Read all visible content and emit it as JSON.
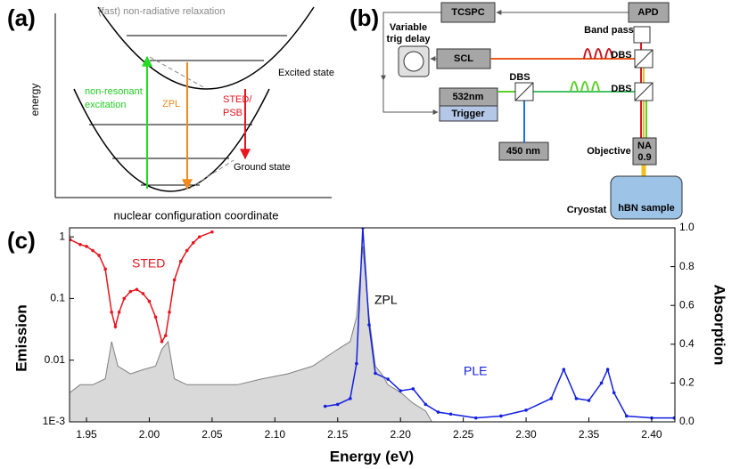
{
  "panel_a": {
    "label": "(a)",
    "relaxation": "(fast) non-radiative relaxation",
    "excited": "Excited state",
    "excitation": [
      "non-resonant",
      "excitation"
    ],
    "zpl": "ZPL",
    "sted": [
      "STED/",
      "PSB"
    ],
    "ground": "Ground state",
    "y_axis": "energy",
    "x_axis": "nuclear configuration coordinate"
  },
  "panel_b": {
    "label": "(b)",
    "tcspc": "TCSPC",
    "apd": "APD",
    "delay": [
      "Variable",
      "trig delay"
    ],
    "band_pass": "Band pass",
    "scl": "SCL",
    "dbs": [
      "DBS",
      "DBS",
      "DBS"
    ],
    "laser_532": "532nm",
    "trigger": "Trigger",
    "laser_450": "450 nm",
    "objective": "Objective",
    "na": [
      "NA",
      "0.9"
    ],
    "cryostat": "Cryostat",
    "sample": "hBN sample"
  },
  "chart_data": {
    "type": "line",
    "label": "(c)",
    "xlabel": "Energy (eV)",
    "ylabel": "Emission",
    "y2label": "Absorption",
    "xlim": [
      1.9365,
      2.4185
    ],
    "xticks": [
      1.95,
      {
        "value": 2,
        "label": "2.00"
      },
      2.05,
      {
        "value": 2.1,
        "label": "2.10"
      },
      2.15,
      {
        "value": 2.2,
        "label": "2.20"
      },
      2.25,
      {
        "value": 2.3,
        "label": "2.30"
      },
      2.35,
      {
        "value": 2.4,
        "label": "2.40"
      }
    ],
    "ylim": [
      0.001,
      1.4
    ],
    "ylog": true,
    "yticks": [
      {
        "value": 0.001,
        "label": "1E-3"
      },
      0.01,
      0.1,
      1
    ],
    "y2lim": [
      0,
      1
    ],
    "y2ticks": [
      {
        "value": 0,
        "label": "0.0"
      },
      0.2,
      0.4,
      0.6,
      0.8,
      {
        "value": 1,
        "label": "1.0"
      }
    ],
    "annotation": "ZPL",
    "series": [
      {
        "name": "STED",
        "color": "#e8141e",
        "x": [
          1.937,
          1.945,
          1.95,
          1.955,
          1.96,
          1.965,
          1.97,
          1.973,
          1.976,
          1.98,
          1.985,
          1.99,
          1.995,
          2.0,
          2.005,
          2.01,
          2.013,
          2.016,
          2.02,
          2.025,
          2.03,
          2.035,
          2.04,
          2.05
        ],
        "values": [
          0.9,
          0.75,
          0.7,
          0.6,
          0.5,
          0.3,
          0.06,
          0.035,
          0.06,
          0.1,
          0.13,
          0.14,
          0.12,
          0.09,
          0.05,
          0.02,
          0.025,
          0.06,
          0.2,
          0.4,
          0.6,
          0.8,
          1,
          1.2
        ]
      },
      {
        "color": "#808080",
        "fill": "#d9d9d9",
        "x": [
          1.937,
          1.945,
          1.955,
          1.965,
          1.97,
          1.975,
          1.985,
          1.995,
          2.005,
          2.01,
          2.015,
          2.02,
          2.03,
          2.05,
          2.07,
          2.09,
          2.11,
          2.13,
          2.15,
          2.16,
          2.165,
          2.17,
          2.175,
          2.18,
          2.185,
          2.19,
          2.2,
          2.21,
          2.22,
          2.225
        ],
        "values": [
          0.003,
          0.004,
          0.004,
          0.005,
          0.02,
          0.008,
          0.006,
          0.007,
          0.008,
          0.015,
          0.02,
          0.005,
          0.004,
          0.004,
          0.004,
          0.005,
          0.006,
          0.008,
          0.015,
          0.02,
          0.05,
          0.7,
          0.05,
          0.008,
          0.006,
          0.004,
          0.003,
          0.002,
          0.0015,
          0.001
        ]
      },
      {
        "name": "PLE",
        "color": "#1420e0",
        "axis": "y2",
        "x": [
          2.14,
          2.15,
          2.16,
          2.165,
          2.17,
          2.175,
          2.18,
          2.19,
          2.2,
          2.21,
          2.22,
          2.23,
          2.24,
          2.26,
          2.28,
          2.3,
          2.32,
          2.33,
          2.34,
          2.35,
          2.36,
          2.365,
          2.37,
          2.38,
          2.4,
          2.418
        ],
        "values": [
          0.08,
          0.09,
          0.12,
          0.3,
          1,
          0.5,
          0.25,
          0.22,
          0.16,
          0.17,
          0.09,
          0.05,
          0.04,
          0.02,
          0.03,
          0.06,
          0.12,
          0.27,
          0.12,
          0.11,
          0.2,
          0.27,
          0.15,
          0.03,
          0.02,
          0.02
        ]
      }
    ]
  }
}
